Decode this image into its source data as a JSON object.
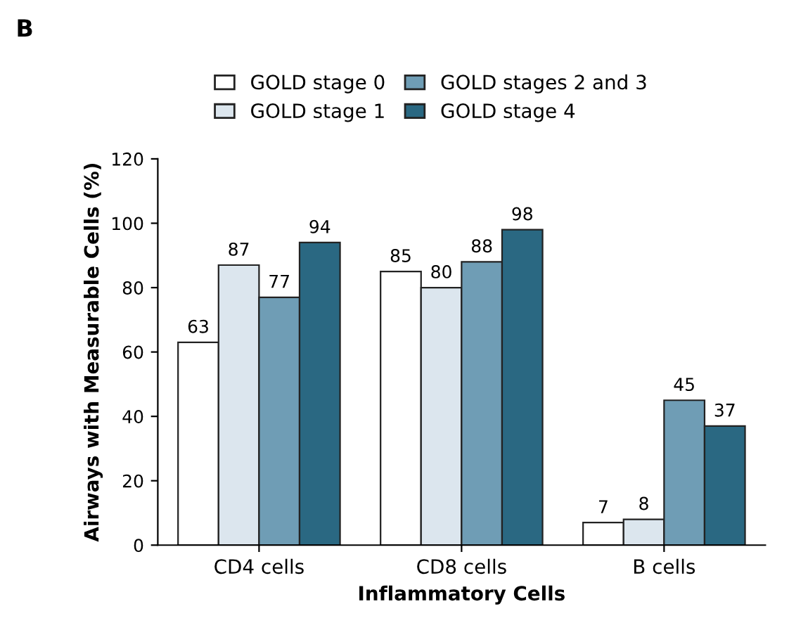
{
  "chart_data": {
    "type": "bar",
    "xlabel": "Inflammatory Cells",
    "ylabel": "Airways with Measurable Cells (%)",
    "annotations": [
      "B"
    ],
    "categories": [
      "CD4 cells",
      "CD8 cells",
      "B cells"
    ],
    "series": [
      {
        "name": "GOLD stage 0",
        "color": "#ffffff",
        "values": [
          63,
          85,
          7
        ]
      },
      {
        "name": "GOLD stage 1",
        "color": "#dce6ee",
        "values": [
          87,
          80,
          8
        ]
      },
      {
        "name": "GOLD stages 2 and 3",
        "color": "#6f9db5",
        "values": [
          77,
          88,
          45
        ]
      },
      {
        "name": "GOLD stage 4",
        "color": "#2a6882",
        "values": [
          94,
          98,
          37
        ]
      }
    ],
    "ylim": [
      0,
      120
    ],
    "yticks": [
      0,
      20,
      40,
      60,
      80,
      100,
      120
    ],
    "data_labels": true,
    "legend": "top",
    "grid": false
  }
}
